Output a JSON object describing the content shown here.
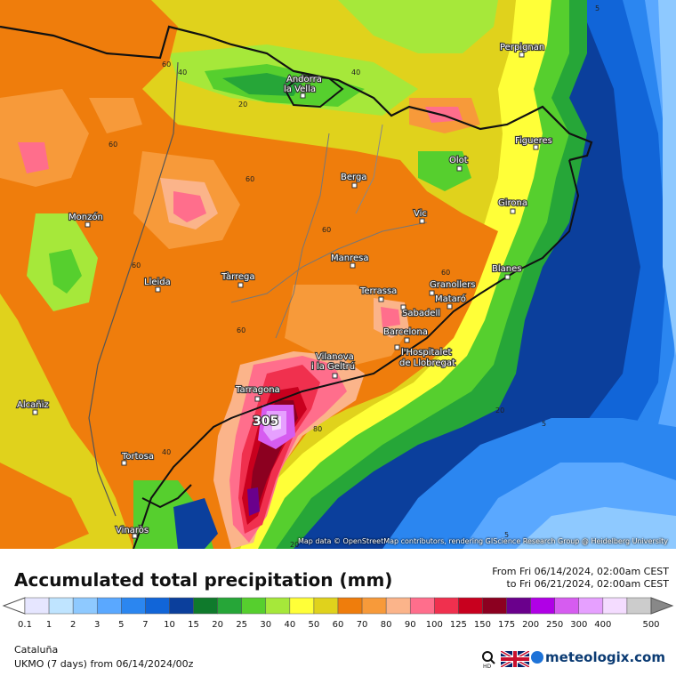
{
  "map": {
    "attribution": "Map data © OpenStreetMap contributors, rendering GIScience Research Group @ Heidelberg University",
    "max_marker": "305",
    "cities": [
      {
        "name": "Perpignan"
      },
      {
        "name": "Andorra la Vella",
        "l1": "Andorra",
        "l2": "la Vella"
      },
      {
        "name": "Figueres"
      },
      {
        "name": "Olot"
      },
      {
        "name": "Berga"
      },
      {
        "name": "Girona"
      },
      {
        "name": "Vic"
      },
      {
        "name": "Monzón"
      },
      {
        "name": "Manresa"
      },
      {
        "name": "Blanes"
      },
      {
        "name": "Lleida"
      },
      {
        "name": "Tàrrega"
      },
      {
        "name": "Terrassa"
      },
      {
        "name": "Granollers"
      },
      {
        "name": "Mataró"
      },
      {
        "name": "Sabadell"
      },
      {
        "name": "Barcelona"
      },
      {
        "name": "l'Hospitalet de Llobregat",
        "l1": "l'Hospitalet",
        "l2": "de Llobregat"
      },
      {
        "name": "Vilanova i la Geltrú",
        "l1": "Vilanova",
        "l2": "i la Geltrú"
      },
      {
        "name": "Tarragona"
      },
      {
        "name": "Alcañiz"
      },
      {
        "name": "Tortosa"
      },
      {
        "name": "Vinaròs"
      }
    ],
    "contour_labels": [
      "5",
      "60",
      "40",
      "40",
      "20",
      "60",
      "60",
      "60",
      "60",
      "60",
      "60",
      "40",
      "20",
      "5",
      "80",
      "20",
      "5"
    ]
  },
  "legend": {
    "title": "Accumulated total precipitation (mm)",
    "from_label": "From Fri 06/14/2024, 02:00am CEST",
    "to_label": "to Fri 06/21/2024, 02:00am CEST",
    "ticks": [
      "0.1",
      "1",
      "2",
      "3",
      "5",
      "7",
      "10",
      "15",
      "20",
      "25",
      "30",
      "40",
      "50",
      "60",
      "70",
      "80",
      "90",
      "100",
      "125",
      "150",
      "175",
      "200",
      "250",
      "300",
      "400",
      "500"
    ],
    "colors": [
      "#e6e6ff",
      "#bfe4ff",
      "#8ec9ff",
      "#5aa8ff",
      "#2b86f0",
      "#1165d8",
      "#0b3f9c",
      "#0f7a2c",
      "#26a638",
      "#56cf2e",
      "#a6e83a",
      "#ffff38",
      "#e0d21c",
      "#ef7d0c",
      "#f79a3a",
      "#fbb48a",
      "#ff6e8c",
      "#f0304e",
      "#c8001e",
      "#8c0020",
      "#6a008c",
      "#b000e6",
      "#d65cf0",
      "#e6a0ff",
      "#f4dcff",
      "#cccccc"
    ]
  },
  "footer": {
    "region": "Cataluña",
    "model": "UKMO (7 days) from 06/14/2024/00z",
    "brand": "meteologix.com",
    "hd_icon": "magnifier-hd-icon",
    "flag_icon": "uk-flag-icon"
  }
}
